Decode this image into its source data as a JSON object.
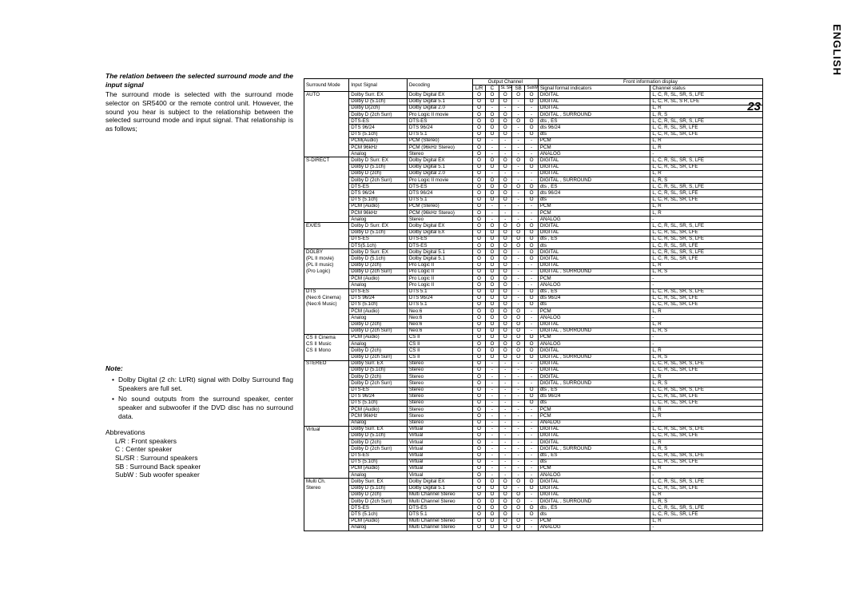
{
  "lang_tab": "ENGLISH",
  "page_num": "23",
  "left": {
    "heading": "The relation between the selected surround mode and the input signal",
    "para": "The surround mode is selected with the surround mode selector on SR5400 or the remote control unit. However, the sound you hear is subject to the relationship between the selected surround mode and input signal. That relationship is as follows;",
    "note_label": "Note:",
    "bullet1": "Dolby Digital (2 ch: Lt/Rt) signal with Dolby Surround flag Speakers are full set.",
    "bullet2": "No sound outputs from the surround speaker, center speaker and subwoofer if the DVD disc has no surround data.",
    "abbrev_head": "Abbrevations",
    "ab1": "L/R : Front speakers",
    "ab2": "C : Center speaker",
    "ab3": "SL/SR : Surround speakers",
    "ab4": "SB : Surround Back speaker",
    "ab5": "SubW : Sub woofer speaker"
  },
  "headers": {
    "sm": "Surround Mode",
    "is": "Input Signal",
    "dec": "Decoding",
    "oc": "Output Channel",
    "fid": "Front information display",
    "lr": "L/R",
    "c": "C",
    "slsr": "SL SR",
    "sb": "SB",
    "subw": "SubW",
    "sfi": "Signal format indicators",
    "cs": "Channel status"
  },
  "rows": [
    [
      "AUTO",
      "Dolby Surr. EX",
      "Dolby Digital EX",
      "O",
      "O",
      "O",
      "O",
      "O",
      "DIGITAL",
      "L, C, R, SL, SR, S, LFE"
    ],
    [
      "",
      "Dolby D (5.1ch)",
      "Dolby Digital 5.1",
      "O",
      "O",
      "O",
      "-",
      "O",
      "DIGITAL",
      "L, C, R, SL, S R, LFE"
    ],
    [
      "",
      "Dolby D(2ch)",
      "Dolby Digital 2.0",
      "O",
      "-",
      "-",
      "-",
      "-",
      "DIGITAL",
      "L, R"
    ],
    [
      "",
      "Dolby D (2ch Surr)",
      "Pro Logic II movie",
      "O",
      "O",
      "O",
      "-",
      "-",
      "DIGITAL ,     SURROUND",
      "L, R, S"
    ],
    [
      "",
      "DTS-ES",
      "DTS-ES",
      "O",
      "O",
      "O",
      "O",
      "O",
      "dts , ES",
      "L, C, R, SL, SR, S, LFE"
    ],
    [
      "",
      "DTS 96/24",
      "DTS 96/24",
      "O",
      "O",
      "O",
      "-",
      "O",
      "dts  96/24",
      "L, C, R, SL, SR, LFE"
    ],
    [
      "",
      "DTS (5.1ch)",
      "DTS 5.1",
      "O",
      "O",
      "O",
      "-",
      "O",
      "dts",
      "L, C, R, SL, SR, LFE"
    ],
    [
      "",
      "PCM(Audio)",
      "PCM (Stereo)",
      "O",
      "-",
      "-",
      "-",
      "-",
      "PCM",
      "L, R"
    ],
    [
      "",
      "PCM 96kHz",
      "PCM (96kHz Stereo)",
      "O",
      "-",
      "-",
      "-",
      "-",
      "PCM",
      "L, R"
    ],
    [
      "",
      "Analog",
      "Stereo",
      "O",
      "-",
      "-",
      "-",
      "-",
      "ANALOG",
      "-"
    ],
    [
      "S-DIRECT",
      "Dolby D Surr. EX",
      "Dolby Digital EX",
      "O",
      "O",
      "O",
      "O",
      "O",
      "DIGITAL",
      "L, C, R, SL, SR, S, LFE"
    ],
    [
      "",
      "Dolby D (5.1ch)",
      "Dolby Digital 5.1",
      "O",
      "O",
      "O",
      "-",
      "O",
      "DIGITAL",
      "L, C, R, SL, SR, LFE"
    ],
    [
      "",
      "Dolby D (2ch)",
      "Dolby Digital 2.0",
      "O",
      "-",
      "-",
      "-",
      "-",
      "DIGITAL",
      "L, R"
    ],
    [
      "",
      "Dolby D (2ch Surr)",
      "Pro Logic II movie",
      "O",
      "O",
      "O",
      "-",
      "-",
      "DIGITAL ,     SURROUND",
      "L, R, S"
    ],
    [
      "",
      "DTS-ES",
      "DTS-ES",
      "O",
      "O",
      "O",
      "O",
      "O",
      "dts , ES",
      "L, C, R, SL, SR, S, LFE"
    ],
    [
      "",
      "DTS 96/24",
      "DTS 96/24",
      "O",
      "O",
      "O",
      "-",
      "O",
      "dts  96/24",
      "L, C, R, SL, SR, LFE"
    ],
    [
      "",
      "DTS (5.1ch)",
      "DTS 5.1",
      "O",
      "O",
      "O",
      "-",
      "O",
      "dts",
      "L, C, R, SL, SR, LFE"
    ],
    [
      "",
      "PCM (Audio)",
      "PCM (Stereo)",
      "O",
      "-",
      "-",
      "-",
      "-",
      "PCM",
      "L, R"
    ],
    [
      "",
      "PCM 96kHz",
      "PCM (96kHz Stereo)",
      "O",
      "-",
      "-",
      "-",
      "-",
      "PCM",
      "L, R"
    ],
    [
      "",
      "Analog",
      "Stereo",
      "O",
      "-",
      "-",
      "-",
      "-",
      "ANALOG",
      "-"
    ],
    [
      "EX/ES",
      "Dolby D Surr. EX",
      "Dolby Digital EX",
      "O",
      "O",
      "O",
      "O",
      "O",
      "DIGITAL",
      "L, C, R, SL, SR, S, LFE"
    ],
    [
      "",
      "Dolby D (5.1ch)",
      "Dolby Digital EX",
      "O",
      "O",
      "O",
      "O",
      "O",
      "DIGITAL",
      "L, C, R, SL, SR, LFE"
    ],
    [
      "",
      "DTS-ES",
      "DTS-ES",
      "O",
      "O",
      "O",
      "O",
      "O",
      "dts , ES",
      "L, C, R, SL, SR, S, LFE"
    ],
    [
      "",
      "DTS(5.1ch)",
      "DTS-ES",
      "O",
      "O",
      "O",
      "O",
      "O",
      "dts",
      "L, C, R, SL, SR, LFE"
    ],
    [
      "DOLBY",
      "Dolby D Surr. EX",
      "Dolby Digital 5.1",
      "O",
      "O",
      "O",
      "-",
      "O",
      "DIGITAL",
      "L, C, R, SL, SR, S, LFE"
    ],
    [
      "(PL II movie)",
      "Dolby D (5.1ch)",
      "Dolby Digital 5.1",
      "O",
      "O",
      "O",
      "-",
      "O",
      "DIGITAL",
      "L, C, R, SL, SR, LFE"
    ],
    [
      "(PL II music)",
      "Dolby D (2ch)",
      "Pro Logic II",
      "O",
      "O",
      "O",
      "-",
      "-",
      "DIGITAL",
      "L, R"
    ],
    [
      "(Pro Logic)",
      "Dolby D (2ch Surr)",
      "Pro Logic II",
      "O",
      "O",
      "O",
      "-",
      "-",
      "DIGITAL ,     SURROUND",
      "L, R, S"
    ],
    [
      "",
      "PCM (Audio)",
      "Pro Logic II",
      "O",
      "O",
      "O",
      "-",
      "-",
      "PCM",
      "-"
    ],
    [
      "",
      "Analog",
      "Pro Logic II",
      "O",
      "O",
      "O",
      "-",
      "-",
      "ANALOG",
      "-"
    ],
    [
      "DTS",
      "DTS-ES",
      "DTS 5.1",
      "O",
      "O",
      "O",
      "-",
      "O",
      "dts , ES",
      "L, C, R, SL, SR, S, LFE"
    ],
    [
      "(Neo:6 Cinema)",
      "DTS 96/24",
      "DTS 96/24",
      "O",
      "O",
      "O",
      "-",
      "O",
      "dts  96/24",
      "L, C, R, SL, SR, LFE"
    ],
    [
      "(Neo:6 Music)",
      "DTS (5.1ch)",
      "DTS 5.1",
      "O",
      "O",
      "O",
      "-",
      "O",
      "dts",
      "L, C, R, SL, SR, LFE"
    ],
    [
      "",
      "PCM (Audio)",
      "Neo:6",
      "O",
      "O",
      "O",
      "O",
      "-",
      "PCM",
      "L, R"
    ],
    [
      "",
      "Analog",
      "Neo:6",
      "O",
      "O",
      "O",
      "O",
      "-",
      "ANALOG",
      "-"
    ],
    [
      "",
      "Dolby D (2ch)",
      "Neo:6",
      "O",
      "O",
      "O",
      "O",
      "-",
      "DIGITAL",
      "L, R"
    ],
    [
      "",
      "Dolby D (2ch Surr)",
      "Neo:6",
      "O",
      "O",
      "O",
      "O",
      "-",
      "DIGITAL ,     SURROUND",
      "L, R, S"
    ],
    [
      "CS II Cinema",
      "PCM (Audio)",
      "CS II",
      "O",
      "O",
      "O",
      "O",
      "O",
      "PCM",
      "-"
    ],
    [
      "CS II Music",
      "Analog",
      "CS II",
      "O",
      "O",
      "O",
      "O",
      "O",
      "ANALOG",
      "-"
    ],
    [
      "CS II Mono",
      "Dolby D (2ch)",
      "CS II",
      "O",
      "O",
      "O",
      "O",
      "O",
      "DIGITAL",
      "L, R"
    ],
    [
      "",
      "Dolby D (2ch Surr)",
      "CS II",
      "O",
      "O",
      "O",
      "O",
      "O",
      "DIGITAL ,     SURROUND",
      "L, R, S"
    ],
    [
      "STEREO",
      "Dolby Surr. EX",
      "Stereo",
      "O",
      "-",
      "-",
      "-",
      "-",
      "DIGITAL",
      "L, C, R, SL, SR, S, LFE"
    ],
    [
      "",
      "Dolby D (5.1ch)",
      "Stereo",
      "O",
      "-",
      "-",
      "-",
      "-",
      "DIGITAL",
      "L, C, R, SL, SR, LFE"
    ],
    [
      "",
      "Dolby D (2ch)",
      "Stereo",
      "O",
      "-",
      "-",
      "-",
      "-",
      "DIGITAL",
      "L, R"
    ],
    [
      "",
      "Dolby D (2ch Surr)",
      "Stereo",
      "O",
      "-",
      "-",
      "-",
      "-",
      "DIGITAL ,     SURROUND",
      "L, R, S"
    ],
    [
      "",
      "DTS-ES",
      "Stereo",
      "O",
      "-",
      "-",
      "-",
      "O",
      "dts , ES",
      "L, C, R, SL, SR, S, LFE"
    ],
    [
      "",
      "DTS 96/24",
      "Stereo",
      "O",
      "-",
      "-",
      "-",
      "O",
      "dts  96/24",
      "L, C, R, SL, SR, LFE"
    ],
    [
      "",
      "DTS (5.1ch)",
      "Stereo",
      "O",
      "-",
      "-",
      "-",
      "O",
      "dts",
      "L, C, R, SL, SR, LFE"
    ],
    [
      "",
      "PCM (Audio)",
      "Stereo",
      "O",
      "-",
      "-",
      "-",
      "-",
      "PCM",
      "L, R"
    ],
    [
      "",
      "PCM 96kHz",
      "Stereo",
      "O",
      "-",
      "-",
      "-",
      "-",
      "PCM",
      "L, R"
    ],
    [
      "",
      "Analog",
      "Stereo",
      "O",
      "-",
      "-",
      "-",
      "-",
      "ANALOG",
      "-"
    ],
    [
      "Virtual",
      "Dolby Surr. EX",
      "Virtual",
      "O",
      "-",
      "-",
      "-",
      "-",
      "DIGITAL",
      "L, C, R, SL, SR, S, LFE"
    ],
    [
      "",
      "Dolby D (5.1ch)",
      "Virtual",
      "O",
      "-",
      "-",
      "-",
      "-",
      "DIGITAL",
      "L, C, R, SL, SR, LFE"
    ],
    [
      "",
      "Dolby D (2ch)",
      "Virtual",
      "O",
      "-",
      "-",
      "-",
      "-",
      "DIGITAL",
      "L, R"
    ],
    [
      "",
      "Dolby D (2ch Surr)",
      "Virtual",
      "O",
      "-",
      "-",
      "-",
      "-",
      "DIGITAL ,     SURROUND",
      "L, R, S"
    ],
    [
      "",
      "DTS-ES",
      "Virtual",
      "O",
      "-",
      "-",
      "-",
      "-",
      "dts , ES",
      "L, C, R, SL, SR, S, LFE"
    ],
    [
      "",
      "DTS (5.1ch)",
      "Virtual",
      "O",
      "-",
      "-",
      "-",
      "-",
      "dts",
      "L, C, R, SL, SR, LFE"
    ],
    [
      "",
      "PCM (Audio)",
      "Virtual",
      "O",
      "-",
      "-",
      "-",
      "-",
      "PCM",
      "L, R"
    ],
    [
      "",
      "Analog",
      "Virtual",
      "O",
      "-",
      "-",
      "-",
      "-",
      "ANALOG",
      "-"
    ],
    [
      "Multi Ch.",
      "Dolby Surr. EX",
      "Dolby Digital EX",
      "O",
      "O",
      "O",
      "O",
      "O",
      "DIGITAL",
      "L, C, R, SL, SR, S, LFE"
    ],
    [
      "Stereo",
      "Dolby D (5.1ch)",
      "Dolby Digital 5.1",
      "O",
      "O",
      "O",
      "-",
      "O",
      "DIGITAL",
      "L, C, R, SL, SR, LFE"
    ],
    [
      "",
      "Dolby D (2ch)",
      "Multi Channel Stereo",
      "O",
      "O",
      "O",
      "O",
      "-",
      "DIGITAL",
      "L, R"
    ],
    [
      "",
      "Dolby D (2ch Surr)",
      "Multi Channel Stereo",
      "O",
      "O",
      "O",
      "O",
      "-",
      "DIGITAL ,     SURROUND",
      "L, R, S"
    ],
    [
      "",
      "DTS-ES",
      "DTS-ES",
      "O",
      "O",
      "O",
      "O",
      "O",
      "dts , ES",
      "L, C, R, SL, SR, S, LFE"
    ],
    [
      "",
      "DTS (5.1ch)",
      "DTS 5.1",
      "O",
      "O",
      "O",
      "-",
      "O",
      "dts",
      "L, C, R, SL, SR, LFE"
    ],
    [
      "",
      "PCM (Audio)",
      "Multi Channel Stereo",
      "O",
      "O",
      "O",
      "O",
      "-",
      "PCM",
      "L, R"
    ],
    [
      "",
      "Analog",
      "Multi Channel Stereo",
      "O",
      "O",
      "O",
      "O",
      "-",
      "ANALOG",
      "-"
    ]
  ],
  "group_breaks": [
    0,
    10,
    20,
    24,
    30,
    37,
    41,
    51,
    59
  ]
}
